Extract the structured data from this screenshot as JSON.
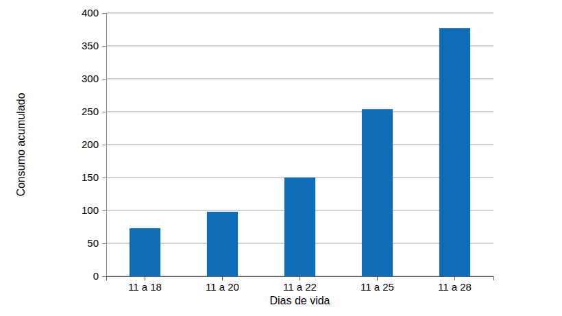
{
  "chart_data": {
    "type": "bar",
    "x_label": "Dias de vida",
    "y_label": "Consumo acumulado",
    "categories": [
      "11 a 18",
      "11 a 20",
      "11 a 22",
      "11 a 25",
      "11 a 28"
    ],
    "values": [
      73,
      98,
      150,
      254,
      377
    ],
    "color": "#0f6db7",
    "ylim": [
      0,
      400
    ],
    "yticks": [
      0,
      50,
      100,
      150,
      200,
      250,
      300,
      350,
      400
    ],
    "grid": true
  }
}
